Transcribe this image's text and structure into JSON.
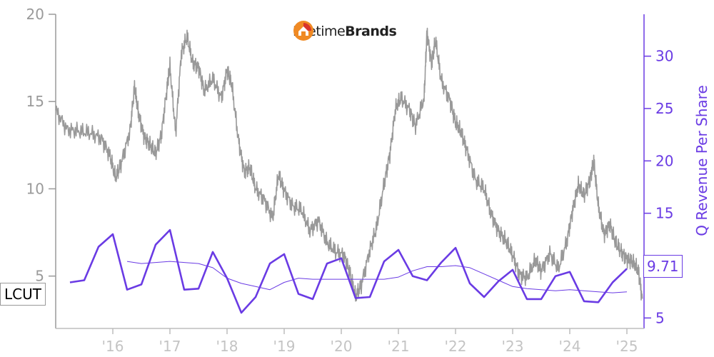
{
  "logo": {
    "name_light": "Lifetime",
    "name_bold": "Brands"
  },
  "ticker_label": "LCUT",
  "last_value_label": "9.71",
  "colors": {
    "price": "#999999",
    "revenue": "#6a3be4",
    "axis_left": "#9a9a9a",
    "axis_right": "#6a3be4",
    "x_ticks": "#c4c4c4",
    "logo_orange": "#f08a24",
    "logo_red": "#d9342b"
  },
  "chart_data": {
    "type": "line",
    "title": "",
    "xlabel": "",
    "x_domain": [
      2015.0,
      2025.3
    ],
    "x_ticks": [
      {
        "x": 2016,
        "label": "'16"
      },
      {
        "x": 2017,
        "label": "'17"
      },
      {
        "x": 2018,
        "label": "'18"
      },
      {
        "x": 2019,
        "label": "'19"
      },
      {
        "x": 2020,
        "label": "'20"
      },
      {
        "x": 2021,
        "label": "'21"
      },
      {
        "x": 2022,
        "label": "'22"
      },
      {
        "x": 2023,
        "label": "'23"
      },
      {
        "x": 2024,
        "label": "'24"
      },
      {
        "x": 2025,
        "label": "'25"
      }
    ],
    "y_left": {
      "ticks": [
        "20",
        "15",
        "10",
        "5"
      ],
      "range": [
        2,
        20
      ]
    },
    "y_right": {
      "label": "Q Revenue Per Share",
      "ticks": [
        "30",
        "25",
        "20",
        "15",
        "10",
        "5"
      ],
      "range": [
        4,
        34
      ]
    },
    "series": [
      {
        "axis": "left",
        "points": [
          [
            2015.0,
            14.5
          ],
          [
            2015.2,
            13.4
          ],
          [
            2015.4,
            13.3
          ],
          [
            2015.6,
            13.2
          ],
          [
            2015.8,
            12.9
          ],
          [
            2015.95,
            11.9
          ],
          [
            2016.05,
            10.6
          ],
          [
            2016.15,
            11.5
          ],
          [
            2016.3,
            13.3
          ],
          [
            2016.38,
            15.8
          ],
          [
            2016.45,
            14.3
          ],
          [
            2016.55,
            13.0
          ],
          [
            2016.65,
            12.5
          ],
          [
            2016.75,
            12.0
          ],
          [
            2016.85,
            13.1
          ],
          [
            2016.95,
            15.8
          ],
          [
            2017.0,
            17.0
          ],
          [
            2017.1,
            13.2
          ],
          [
            2017.2,
            17.8
          ],
          [
            2017.3,
            18.7
          ],
          [
            2017.4,
            17.2
          ],
          [
            2017.5,
            17.0
          ],
          [
            2017.6,
            15.6
          ],
          [
            2017.75,
            16.3
          ],
          [
            2017.9,
            15.2
          ],
          [
            2018.0,
            16.8
          ],
          [
            2018.08,
            16.0
          ],
          [
            2018.2,
            12.8
          ],
          [
            2018.3,
            11.0
          ],
          [
            2018.4,
            11.2
          ],
          [
            2018.5,
            10.0
          ],
          [
            2018.65,
            9.4
          ],
          [
            2018.8,
            8.3
          ],
          [
            2018.9,
            10.8
          ],
          [
            2019.0,
            9.9
          ],
          [
            2019.15,
            9.0
          ],
          [
            2019.3,
            8.8
          ],
          [
            2019.45,
            7.6
          ],
          [
            2019.6,
            8.2
          ],
          [
            2019.75,
            6.9
          ],
          [
            2019.9,
            6.4
          ],
          [
            2020.05,
            6.2
          ],
          [
            2020.15,
            5.2
          ],
          [
            2020.25,
            3.8
          ],
          [
            2020.35,
            4.5
          ],
          [
            2020.5,
            6.5
          ],
          [
            2020.62,
            7.8
          ],
          [
            2020.75,
            10.3
          ],
          [
            2020.85,
            12.0
          ],
          [
            2020.95,
            14.6
          ],
          [
            2021.05,
            15.2
          ],
          [
            2021.2,
            14.5
          ],
          [
            2021.3,
            13.6
          ],
          [
            2021.45,
            15.2
          ],
          [
            2021.5,
            19.0
          ],
          [
            2021.58,
            17.2
          ],
          [
            2021.65,
            18.5
          ],
          [
            2021.75,
            16.2
          ],
          [
            2021.9,
            15.1
          ],
          [
            2022.0,
            13.8
          ],
          [
            2022.1,
            13.2
          ],
          [
            2022.2,
            12.2
          ],
          [
            2022.35,
            10.5
          ],
          [
            2022.5,
            10.0
          ],
          [
            2022.62,
            8.6
          ],
          [
            2022.75,
            7.6
          ],
          [
            2022.88,
            7.0
          ],
          [
            2023.0,
            6.2
          ],
          [
            2023.12,
            5.1
          ],
          [
            2023.25,
            4.9
          ],
          [
            2023.4,
            5.9
          ],
          [
            2023.5,
            5.3
          ],
          [
            2023.65,
            6.3
          ],
          [
            2023.8,
            5.4
          ],
          [
            2023.95,
            7.0
          ],
          [
            2024.05,
            8.8
          ],
          [
            2024.15,
            10.2
          ],
          [
            2024.25,
            9.6
          ],
          [
            2024.35,
            10.5
          ],
          [
            2024.42,
            11.6
          ],
          [
            2024.5,
            9.0
          ],
          [
            2024.6,
            7.4
          ],
          [
            2024.7,
            8.0
          ],
          [
            2024.8,
            6.9
          ],
          [
            2024.9,
            6.4
          ],
          [
            2025.0,
            6.0
          ],
          [
            2025.1,
            5.8
          ],
          [
            2025.2,
            5.3
          ],
          [
            2025.27,
            3.7
          ]
        ]
      },
      {
        "axis": "right",
        "points": [
          [
            2015.25,
            8.4
          ],
          [
            2015.5,
            8.6
          ],
          [
            2015.75,
            11.8
          ],
          [
            2016.0,
            13.0
          ],
          [
            2016.25,
            7.7
          ],
          [
            2016.5,
            8.2
          ],
          [
            2016.75,
            12.0
          ],
          [
            2017.0,
            13.4
          ],
          [
            2017.25,
            7.7
          ],
          [
            2017.5,
            7.8
          ],
          [
            2017.75,
            11.3
          ],
          [
            2018.0,
            8.8
          ],
          [
            2018.25,
            5.5
          ],
          [
            2018.5,
            7.0
          ],
          [
            2018.75,
            10.2
          ],
          [
            2019.0,
            11.1
          ],
          [
            2019.25,
            7.3
          ],
          [
            2019.5,
            6.8
          ],
          [
            2019.75,
            10.2
          ],
          [
            2020.0,
            10.7
          ],
          [
            2020.25,
            6.9
          ],
          [
            2020.5,
            7.0
          ],
          [
            2020.75,
            10.4
          ],
          [
            2021.0,
            11.5
          ],
          [
            2021.25,
            9.0
          ],
          [
            2021.5,
            8.6
          ],
          [
            2021.75,
            10.3
          ],
          [
            2022.0,
            11.7
          ],
          [
            2022.25,
            8.3
          ],
          [
            2022.5,
            7.0
          ],
          [
            2022.75,
            8.5
          ],
          [
            2023.0,
            9.6
          ],
          [
            2023.25,
            6.8
          ],
          [
            2023.5,
            6.8
          ],
          [
            2023.75,
            9.0
          ],
          [
            2024.0,
            9.4
          ],
          [
            2024.25,
            6.6
          ],
          [
            2024.5,
            6.5
          ],
          [
            2024.75,
            8.4
          ],
          [
            2025.0,
            9.71
          ]
        ]
      },
      {
        "axis": "right",
        "points": [
          [
            2016.25,
            10.4
          ],
          [
            2016.5,
            10.2
          ],
          [
            2016.75,
            10.3
          ],
          [
            2017.0,
            10.4
          ],
          [
            2017.25,
            10.3
          ],
          [
            2017.5,
            10.2
          ],
          [
            2017.75,
            9.8
          ],
          [
            2018.0,
            8.8
          ],
          [
            2018.25,
            8.3
          ],
          [
            2018.5,
            8.0
          ],
          [
            2018.75,
            7.7
          ],
          [
            2019.0,
            8.4
          ],
          [
            2019.25,
            8.8
          ],
          [
            2019.5,
            8.7
          ],
          [
            2019.75,
            8.7
          ],
          [
            2020.0,
            8.7
          ],
          [
            2020.25,
            8.7
          ],
          [
            2020.5,
            8.7
          ],
          [
            2020.75,
            8.7
          ],
          [
            2021.0,
            8.9
          ],
          [
            2021.25,
            9.5
          ],
          [
            2021.5,
            9.9
          ],
          [
            2021.75,
            9.9
          ],
          [
            2022.0,
            10.0
          ],
          [
            2022.25,
            9.8
          ],
          [
            2022.5,
            9.2
          ],
          [
            2022.75,
            8.6
          ],
          [
            2023.0,
            8.0
          ],
          [
            2023.25,
            7.8
          ],
          [
            2023.5,
            7.7
          ],
          [
            2023.75,
            7.6
          ],
          [
            2024.0,
            7.7
          ],
          [
            2024.25,
            7.6
          ],
          [
            2024.5,
            7.5
          ],
          [
            2024.75,
            7.4
          ],
          [
            2025.0,
            7.5
          ]
        ]
      }
    ]
  }
}
